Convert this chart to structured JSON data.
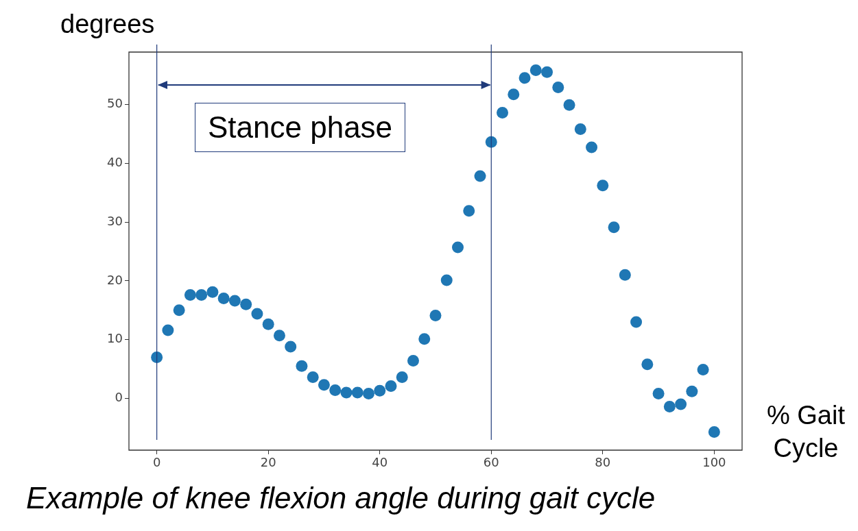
{
  "chart_data": {
    "type": "scatter",
    "title": "Example of knee flexion angle during gait cycle",
    "xlabel": "% Gait Cycle",
    "ylabel": "degrees",
    "x": [
      0,
      2,
      4,
      6,
      8,
      10,
      12,
      14,
      16,
      18,
      20,
      22,
      24,
      26,
      28,
      30,
      32,
      34,
      36,
      38,
      40,
      42,
      44,
      46,
      48,
      50,
      52,
      54,
      56,
      58,
      60,
      62,
      64,
      66,
      68,
      70,
      72,
      74,
      76,
      78,
      80,
      82,
      84,
      86,
      88,
      90,
      92,
      94,
      96,
      98,
      100
    ],
    "series": [
      {
        "color": "#1f77b4",
        "values": [
          7.0,
          11.6,
          15.0,
          17.6,
          17.6,
          18.1,
          17.0,
          16.6,
          16.0,
          14.4,
          12.6,
          10.7,
          8.8,
          5.5,
          3.6,
          2.3,
          1.4,
          1.0,
          1.0,
          0.8,
          1.3,
          2.1,
          3.6,
          6.4,
          10.1,
          14.1,
          20.1,
          25.7,
          31.9,
          37.8,
          43.6,
          48.6,
          51.7,
          54.5,
          55.8,
          55.5,
          52.9,
          49.9,
          45.8,
          42.7,
          36.2,
          29.1,
          21.0,
          13.0,
          5.8,
          0.8,
          -1.4,
          -1.0,
          1.2,
          4.9,
          -5.7
        ]
      }
    ],
    "xlim": [
      -5,
      105
    ],
    "ylim": [
      -8.8,
      58.9
    ],
    "xticks": [
      0,
      20,
      40,
      60,
      80,
      100
    ],
    "yticks": [
      0,
      10,
      20,
      30,
      40,
      50
    ],
    "ref_lines": [
      {
        "axis": "x",
        "value": 0,
        "color": "#1f3a7a"
      },
      {
        "axis": "x",
        "value": 60,
        "color": "#1f3a7a"
      }
    ],
    "annotations": [
      "Stance phase"
    ],
    "grid": false,
    "legend": false,
    "marker": "circle"
  }
}
